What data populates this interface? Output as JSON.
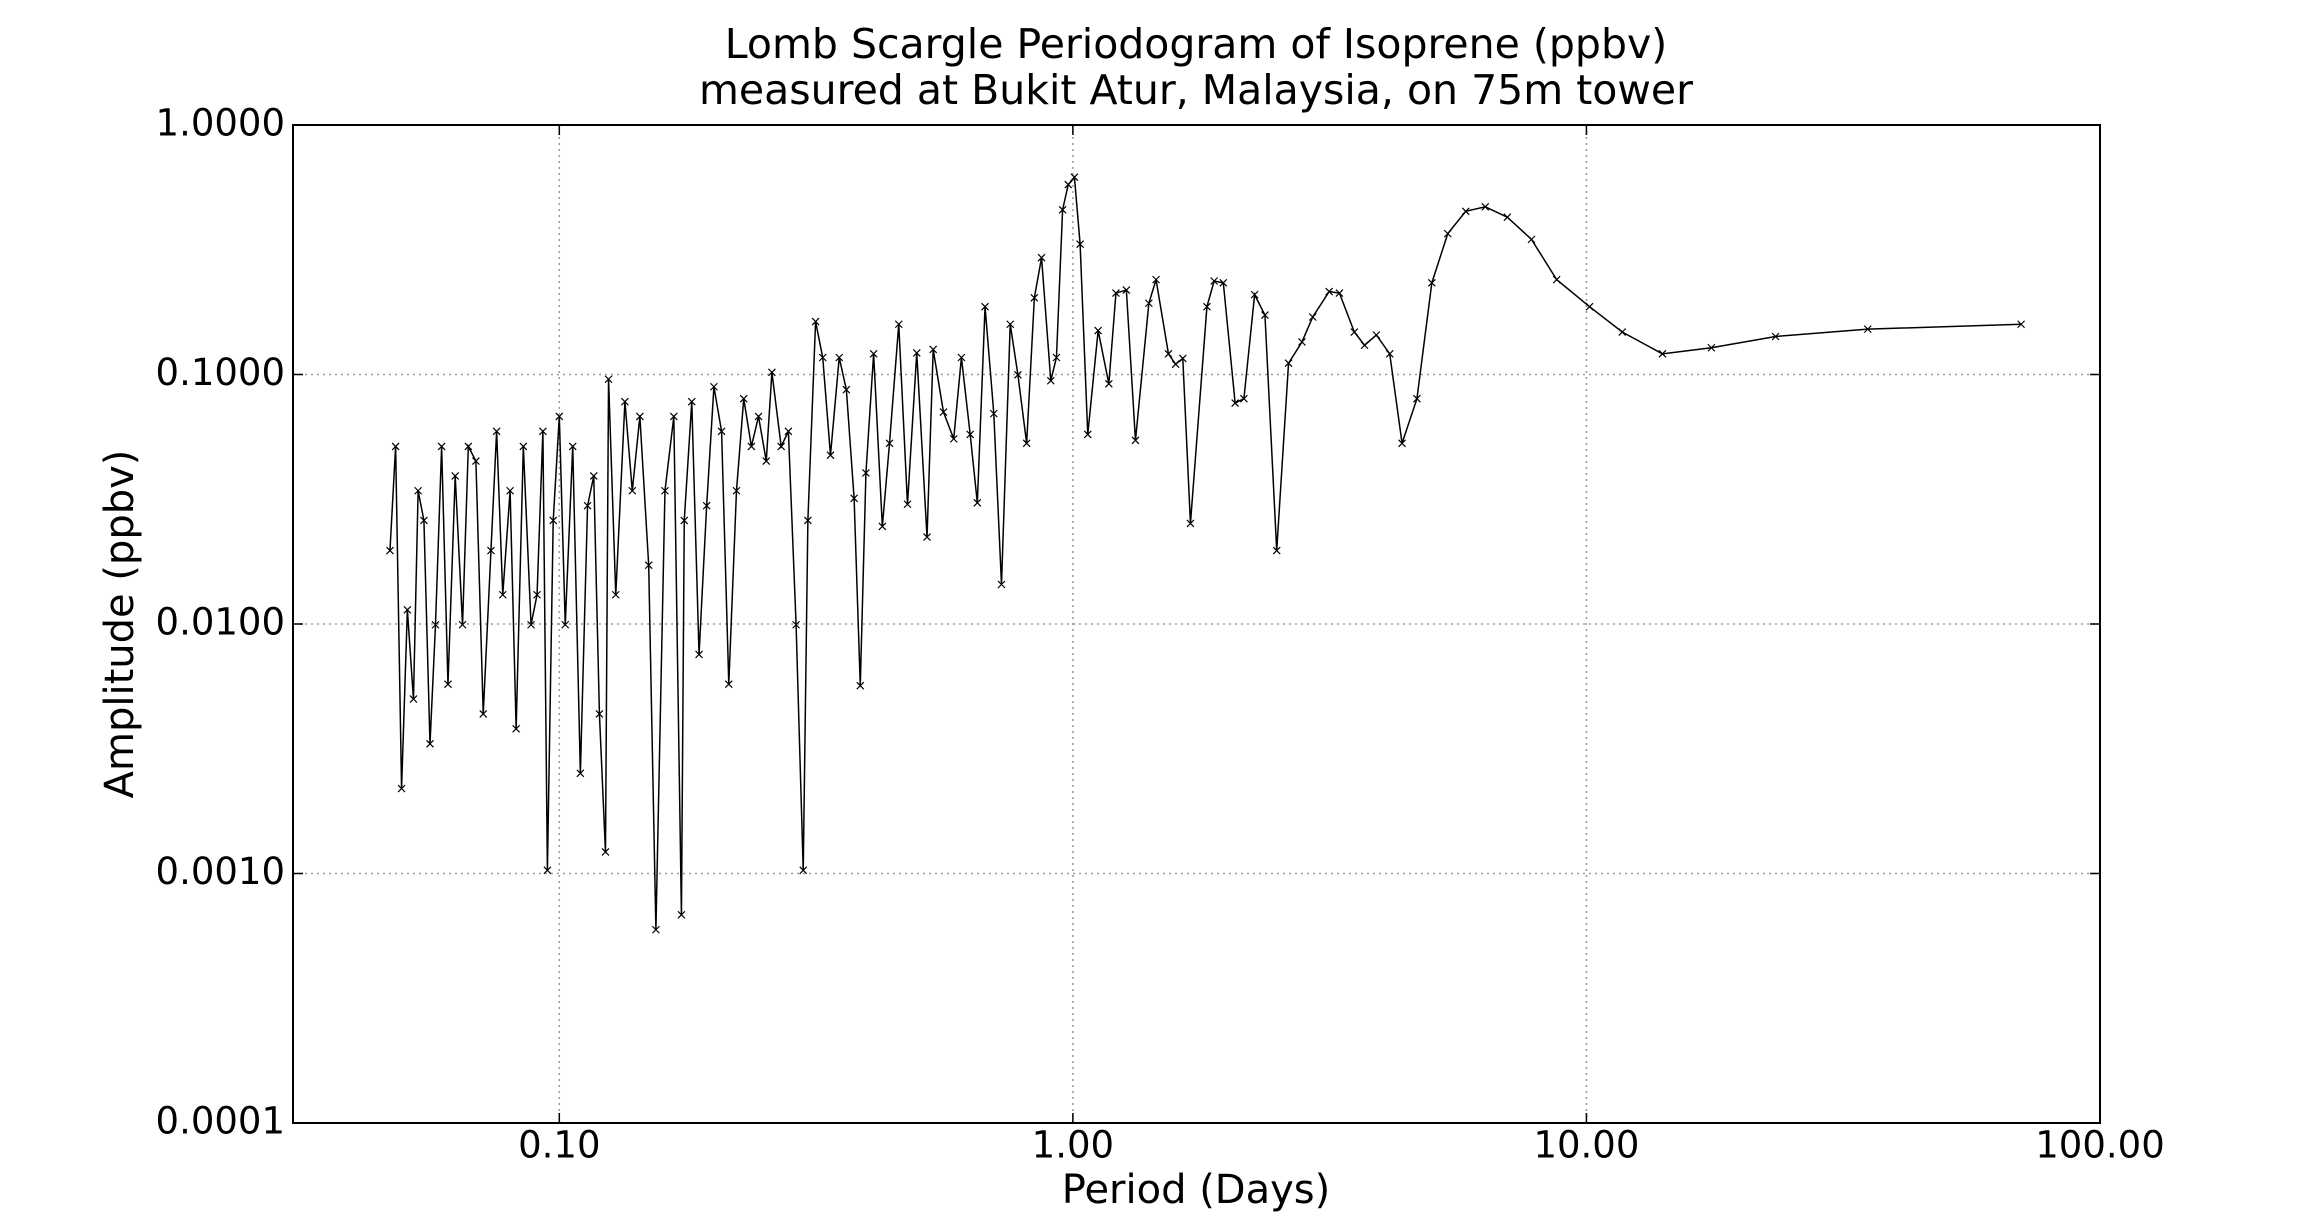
{
  "chart_data": {
    "type": "line",
    "title": "Lomb Scargle Periodogram of Isoprene (ppbv)",
    "subtitle": "measured at Bukit Atur, Malaysia, on 75m tower",
    "x_label": "Period (Days)",
    "y_label": "Amplitude (ppbv)",
    "xscale": "log",
    "yscale": "log",
    "grid": true,
    "color": "#000000",
    "marker": "x",
    "xlim": [
      0.0303,
      100
    ],
    "ylim": [
      0.0001,
      1
    ],
    "xticks": [
      {
        "value": 0.1,
        "label": "0.10"
      },
      {
        "value": 1,
        "label": "1.00"
      },
      {
        "value": 10,
        "label": "10.00"
      },
      {
        "value": 100,
        "label": "100.00"
      }
    ],
    "yticks": [
      {
        "value": 0.0001,
        "label": "0.0001"
      },
      {
        "value": 0.001,
        "label": "0.0010"
      },
      {
        "value": 0.01,
        "label": "0.0100"
      },
      {
        "value": 0.1,
        "label": "0.1000"
      },
      {
        "value": 1,
        "label": "1.0000"
      }
    ],
    "x": [
      0.0468,
      0.048,
      0.0493,
      0.0506,
      0.052,
      0.0531,
      0.0545,
      0.056,
      0.0574,
      0.059,
      0.0607,
      0.0627,
      0.0648,
      0.0665,
      0.0688,
      0.0711,
      0.0736,
      0.0755,
      0.0776,
      0.0802,
      0.0824,
      0.0851,
      0.0881,
      0.0905,
      0.0929,
      0.0948,
      0.0973,
      0.1,
      0.1027,
      0.1062,
      0.1099,
      0.1135,
      0.1167,
      0.1197,
      0.123,
      0.1247,
      0.1288,
      0.1342,
      0.1387,
      0.1435,
      0.1493,
      0.1542,
      0.1606,
      0.1671,
      0.1729,
      0.1751,
      0.1811,
      0.1871,
      0.1936,
      0.2,
      0.207,
      0.2138,
      0.2213,
      0.2286,
      0.2366,
      0.2443,
      0.2529,
      0.2594,
      0.2704,
      0.2793,
      0.2891,
      0.2985,
      0.3048,
      0.3155,
      0.3258,
      0.3373,
      0.3508,
      0.3622,
      0.375,
      0.3855,
      0.3954,
      0.4093,
      0.4256,
      0.4395,
      0.4581,
      0.4764,
      0.4966,
      0.52,
      0.5346,
      0.5598,
      0.5861,
      0.6067,
      0.631,
      0.6516,
      0.6745,
      0.7015,
      0.7261,
      0.7551,
      0.7816,
      0.8128,
      0.8414,
      0.869,
      0.9057,
      0.929,
      0.955,
      0.9795,
      1.007,
      1.033,
      1.069,
      1.12,
      1.175,
      1.213,
      1.271,
      1.324,
      1.406,
      1.452,
      1.535,
      1.585,
      1.637,
      1.694,
      1.824,
      1.884,
      1.963,
      2.07,
      2.153,
      2.259,
      2.366,
      2.494,
      2.63,
      2.793,
      2.931,
      3.155,
      3.304,
      3.532,
      3.698,
      3.899,
      4.14,
      4.375,
      4.677,
      5.0,
      5.37,
      5.821,
      6.353,
      7.015,
      7.816,
      8.75,
      10.14,
      11.74,
      14.06,
      17.51,
      23.35,
      35.3,
      70.2
    ],
    "values": [
      0.0197,
      0.0515,
      0.00219,
      0.0114,
      0.005,
      0.0342,
      0.026,
      0.00331,
      0.00993,
      0.0515,
      0.00574,
      0.0392,
      0.00993,
      0.0515,
      0.045,
      0.00436,
      0.0197,
      0.0592,
      0.0131,
      0.0342,
      0.0038,
      0.0515,
      0.00993,
      0.0131,
      0.0592,
      0.00103,
      0.026,
      0.0679,
      0.00993,
      0.0515,
      0.00252,
      0.0298,
      0.0392,
      0.00436,
      0.00122,
      0.0957,
      0.0131,
      0.0778,
      0.0342,
      0.0679,
      0.0172,
      0.000595,
      0.0342,
      0.0679,
      0.000683,
      0.026,
      0.0778,
      0.00755,
      0.0298,
      0.0893,
      0.0592,
      0.00574,
      0.0342,
      0.08,
      0.0515,
      0.0679,
      0.045,
      0.102,
      0.0515,
      0.0592,
      0.00993,
      0.00103,
      0.026,
      0.163,
      0.117,
      0.0475,
      0.117,
      0.0869,
      0.0319,
      0.00566,
      0.0403,
      0.121,
      0.0246,
      0.053,
      0.159,
      0.0302,
      0.122,
      0.0223,
      0.126,
      0.0707,
      0.0552,
      0.117,
      0.0575,
      0.0306,
      0.187,
      0.0697,
      0.0144,
      0.159,
      0.0997,
      0.053,
      0.203,
      0.294,
      0.0944,
      0.117,
      0.457,
      0.577,
      0.618,
      0.333,
      0.0575,
      0.15,
      0.0918,
      0.212,
      0.218,
      0.0545,
      0.193,
      0.24,
      0.121,
      0.11,
      0.116,
      0.0253,
      0.187,
      0.237,
      0.233,
      0.0768,
      0.08,
      0.209,
      0.173,
      0.0197,
      0.111,
      0.135,
      0.17,
      0.215,
      0.212,
      0.148,
      0.131,
      0.144,
      0.121,
      0.053,
      0.08,
      0.233,
      0.367,
      0.451,
      0.47,
      0.427,
      0.348,
      0.24,
      0.187,
      0.148,
      0.121,
      0.128,
      0.142,
      0.152,
      0.159
    ]
  }
}
